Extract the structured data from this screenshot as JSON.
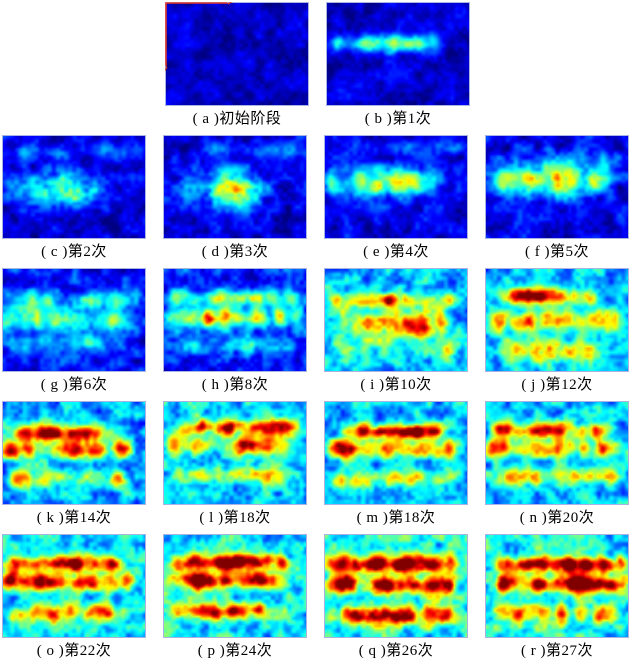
{
  "figure": {
    "title": "",
    "annotation_color": "#e23a28",
    "panels": [
      {
        "id": "a",
        "caption": "( a )初始阶段",
        "red_axes": true,
        "heat": {
          "seed": 1,
          "base": 0.05,
          "noise": 0.1,
          "bands": [],
          "blobs": []
        }
      },
      {
        "id": "b",
        "caption": "( b )第1次",
        "heat": {
          "seed": 2,
          "base": 0.06,
          "noise": 0.11,
          "bands": [
            [
              0.38,
              0.26,
              0.06,
              0.08,
              0.72
            ]
          ],
          "blobs": [
            [
              0.42,
              0.4,
              0.18,
              0.16,
              0.07
            ]
          ]
        }
      },
      {
        "id": "c",
        "caption": "( c )第2次",
        "heat": {
          "seed": 3,
          "base": 0.07,
          "noise": 0.13,
          "bands": [
            [
              0.14,
              0.1,
              0.05,
              0.1,
              0.9
            ],
            [
              0.5,
              0.14,
              0.08,
              0.05,
              0.6
            ]
          ],
          "blobs": [
            [
              0.38,
              0.5,
              0.3,
              0.16,
              0.11
            ],
            [
              0.52,
              0.6,
              0.16,
              0.1,
              0.08
            ]
          ]
        }
      },
      {
        "id": "d",
        "caption": "( d )第3次",
        "heat": {
          "seed": 4,
          "base": 0.07,
          "noise": 0.13,
          "bands": [
            [
              0.12,
              0.12,
              0.05,
              0.3,
              1.0
            ],
            [
              0.48,
              0.12,
              0.08,
              0.1,
              0.7
            ]
          ],
          "blobs": [
            [
              0.47,
              0.48,
              0.34,
              0.16,
              0.12
            ],
            [
              0.52,
              0.63,
              0.14,
              0.09,
              0.08
            ]
          ]
        }
      },
      {
        "id": "e",
        "caption": "( e )第4次",
        "heat": {
          "seed": 5,
          "base": 0.08,
          "noise": 0.13,
          "bands": [
            [
              0.1,
              0.1,
              0.05,
              0.2,
              1.0
            ],
            [
              0.44,
              0.24,
              0.09,
              0.05,
              0.75
            ]
          ],
          "blobs": [
            [
              0.42,
              0.46,
              0.2,
              0.2,
              0.12
            ]
          ]
        }
      },
      {
        "id": "f",
        "caption": "( f )第5次",
        "heat": {
          "seed": 6,
          "base": 0.08,
          "noise": 0.14,
          "bands": [
            [
              0.22,
              0.14,
              0.06,
              0.2,
              0.9
            ],
            [
              0.42,
              0.26,
              0.09,
              0.05,
              0.8
            ]
          ],
          "blobs": [
            [
              0.45,
              0.42,
              0.24,
              0.2,
              0.13
            ]
          ]
        }
      },
      {
        "id": "g",
        "caption": "( g )第6次",
        "heat": {
          "seed": 7,
          "base": 0.11,
          "noise": 0.15,
          "bands": [
            [
              0.3,
              0.24,
              0.06,
              0.1,
              0.9
            ],
            [
              0.5,
              0.26,
              0.07,
              0.05,
              0.85
            ],
            [
              0.72,
              0.16,
              0.06,
              0.1,
              0.8
            ]
          ],
          "blobs": [
            [
              0.42,
              0.42,
              0.1,
              0.28,
              0.18
            ]
          ]
        }
      },
      {
        "id": "h",
        "caption": "( h )第8次",
        "heat": {
          "seed": 8,
          "base": 0.13,
          "noise": 0.17,
          "bands": [
            [
              0.27,
              0.34,
              0.06,
              0.08,
              0.92
            ],
            [
              0.47,
              0.36,
              0.07,
              0.05,
              0.9
            ],
            [
              0.74,
              0.2,
              0.06,
              0.1,
              0.85
            ]
          ],
          "blobs": [
            [
              0.6,
              0.27,
              0.22,
              0.06,
              0.04
            ],
            [
              0.33,
              0.47,
              0.24,
              0.07,
              0.05
            ]
          ]
        }
      },
      {
        "id": "i",
        "caption": "( i )第10次",
        "heat": {
          "seed": 9,
          "base": 0.28,
          "noise": 0.2,
          "bands": [
            [
              0.3,
              0.26,
              0.06,
              0.1,
              0.85
            ],
            [
              0.53,
              0.34,
              0.09,
              0.15,
              0.8
            ],
            [
              0.78,
              0.16,
              0.06,
              0.1,
              0.85
            ]
          ],
          "blobs": [
            [
              0.42,
              0.29,
              0.34,
              0.05,
              0.035
            ],
            [
              0.52,
              0.53,
              0.22,
              0.16,
              0.1
            ]
          ]
        }
      },
      {
        "id": "j",
        "caption": "( j )第12次",
        "heat": {
          "seed": 10,
          "base": 0.28,
          "noise": 0.2,
          "bands": [
            [
              0.26,
              0.42,
              0.055,
              0.15,
              0.7
            ],
            [
              0.5,
              0.38,
              0.07,
              0.08,
              0.9
            ],
            [
              0.79,
              0.24,
              0.07,
              0.15,
              0.75
            ]
          ],
          "blobs": [
            [
              0.38,
              0.25,
              0.26,
              0.1,
              0.04
            ],
            [
              0.46,
              0.81,
              0.16,
              0.14,
              0.08
            ]
          ]
        }
      },
      {
        "id": "k",
        "caption": "( k )第14次",
        "heat": {
          "seed": 11,
          "base": 0.27,
          "noise": 0.21,
          "bands": [
            [
              0.3,
              0.44,
              0.055,
              0.12,
              0.8
            ],
            [
              0.46,
              0.46,
              0.06,
              0.05,
              0.85
            ],
            [
              0.74,
              0.24,
              0.06,
              0.1,
              0.8
            ]
          ],
          "blobs": [
            [
              0.4,
              0.3,
              0.16,
              0.09,
              0.04
            ]
          ]
        }
      },
      {
        "id": "l",
        "caption": "( l )第18次",
        "heat": {
          "seed": 12,
          "base": 0.29,
          "noise": 0.22,
          "bands": [
            [
              0.24,
              0.46,
              0.055,
              0.15,
              0.85
            ],
            [
              0.41,
              0.44,
              0.06,
              0.08,
              0.8
            ],
            [
              0.71,
              0.26,
              0.06,
              0.1,
              0.8
            ]
          ],
          "blobs": [
            [
              0.42,
              0.24,
              0.18,
              0.08,
              0.04
            ],
            [
              0.55,
              0.55,
              0.12,
              0.08,
              0.1
            ]
          ]
        }
      },
      {
        "id": "m",
        "caption": "( m )第18次",
        "heat": {
          "seed": 13,
          "base": 0.28,
          "noise": 0.21,
          "bands": [
            [
              0.28,
              0.52,
              0.05,
              0.18,
              0.78
            ],
            [
              0.45,
              0.44,
              0.06,
              0.08,
              0.85
            ],
            [
              0.74,
              0.28,
              0.06,
              0.1,
              0.85
            ]
          ],
          "blobs": [
            [
              0.48,
              0.28,
              0.18,
              0.14,
              0.035
            ]
          ]
        }
      },
      {
        "id": "n",
        "caption": "( n )第20次",
        "heat": {
          "seed": 14,
          "base": 0.28,
          "noise": 0.21,
          "bands": [
            [
              0.27,
              0.42,
              0.055,
              0.1,
              0.8
            ],
            [
              0.45,
              0.4,
              0.06,
              0.05,
              0.9
            ],
            [
              0.72,
              0.3,
              0.06,
              0.1,
              0.85
            ]
          ],
          "blobs": [
            [
              0.38,
              0.27,
              0.24,
              0.06,
              0.04
            ]
          ]
        }
      },
      {
        "id": "o",
        "caption": "( o )第22次",
        "heat": {
          "seed": 15,
          "base": 0.31,
          "noise": 0.22,
          "bands": [
            [
              0.27,
              0.52,
              0.055,
              0.1,
              0.75
            ],
            [
              0.44,
              0.52,
              0.06,
              0.05,
              0.85
            ],
            [
              0.76,
              0.36,
              0.06,
              0.08,
              0.8
            ]
          ],
          "blobs": [
            [
              0.35,
              0.27,
              0.2,
              0.1,
              0.04
            ],
            [
              0.4,
              0.45,
              0.18,
              0.1,
              0.04
            ]
          ]
        }
      },
      {
        "id": "p",
        "caption": "( p )第24次",
        "heat": {
          "seed": 16,
          "base": 0.32,
          "noise": 0.22,
          "bands": [
            [
              0.26,
              0.52,
              0.055,
              0.12,
              0.8
            ],
            [
              0.44,
              0.54,
              0.06,
              0.08,
              0.8
            ],
            [
              0.74,
              0.4,
              0.06,
              0.1,
              0.8
            ]
          ],
          "blobs": [
            [
              0.5,
              0.26,
              0.2,
              0.1,
              0.04
            ],
            [
              0.35,
              0.44,
              0.2,
              0.09,
              0.04
            ],
            [
              0.45,
              0.75,
              0.16,
              0.08,
              0.035
            ]
          ]
        }
      },
      {
        "id": "q",
        "caption": "( q )第26次",
        "heat": {
          "seed": 17,
          "base": 0.34,
          "noise": 0.23,
          "bands": [
            [
              0.28,
              0.52,
              0.06,
              0.08,
              0.85
            ],
            [
              0.48,
              0.52,
              0.06,
              0.05,
              0.85
            ],
            [
              0.78,
              0.42,
              0.06,
              0.08,
              0.85
            ]
          ],
          "blobs": [
            [
              0.3,
              0.28,
              0.18,
              0.08,
              0.04
            ],
            [
              0.48,
              0.48,
              0.18,
              0.1,
              0.04
            ],
            [
              0.42,
              0.8,
              0.16,
              0.08,
              0.035
            ]
          ]
        }
      },
      {
        "id": "r",
        "caption": "( r )第27次",
        "heat": {
          "seed": 18,
          "base": 0.34,
          "noise": 0.22,
          "bands": [
            [
              0.28,
              0.58,
              0.055,
              0.12,
              0.92
            ],
            [
              0.47,
              0.56,
              0.06,
              0.08,
              0.95
            ],
            [
              0.77,
              0.36,
              0.06,
              0.08,
              0.85
            ]
          ],
          "blobs": [
            [
              0.55,
              0.28,
              0.2,
              0.18,
              0.035
            ],
            [
              0.55,
              0.47,
              0.2,
              0.18,
              0.035
            ]
          ]
        }
      }
    ]
  }
}
